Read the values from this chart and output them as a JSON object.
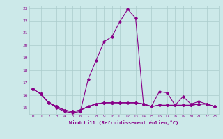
{
  "xlabel": "Windchill (Refroidissement éolien,°C)",
  "background_color": "#cce9e9",
  "grid_color": "#aacccc",
  "line_color": "#880088",
  "x_hours": [
    0,
    1,
    2,
    3,
    4,
    5,
    6,
    7,
    8,
    9,
    10,
    11,
    12,
    13,
    14,
    15,
    16,
    17,
    18,
    19,
    20,
    21,
    22,
    23
  ],
  "series": [
    [
      16.5,
      16.1,
      15.4,
      15.0,
      14.7,
      14.6,
      14.7,
      17.3,
      18.8,
      20.3,
      20.7,
      21.9,
      22.9,
      22.2,
      15.3,
      15.1,
      16.3,
      16.2,
      15.2,
      15.9,
      15.3,
      15.5,
      15.3,
      15.1
    ],
    [
      16.5,
      16.1,
      15.4,
      15.1,
      14.8,
      14.7,
      14.8,
      15.1,
      15.3,
      15.4,
      15.4,
      15.4,
      15.4,
      15.4,
      15.3,
      15.1,
      15.2,
      15.2,
      15.2,
      15.2,
      15.2,
      15.3,
      15.3,
      15.1
    ],
    [
      16.5,
      16.1,
      15.4,
      15.1,
      14.8,
      14.7,
      14.8,
      15.1,
      15.3,
      15.4,
      15.4,
      15.4,
      15.4,
      15.4,
      15.3,
      15.1,
      15.2,
      15.2,
      15.2,
      15.2,
      15.2,
      15.3,
      15.3,
      15.1
    ],
    [
      16.5,
      16.1,
      15.4,
      15.1,
      14.8,
      14.7,
      14.8,
      15.1,
      15.3,
      15.4,
      15.4,
      15.4,
      15.4,
      15.4,
      15.3,
      15.1,
      15.2,
      15.2,
      15.2,
      15.2,
      15.2,
      15.3,
      15.3,
      15.1
    ]
  ],
  "ylim": [
    14.5,
    23.2
  ],
  "yticks": [
    15,
    16,
    17,
    18,
    19,
    20,
    21,
    22,
    23
  ],
  "xticks": [
    0,
    1,
    2,
    3,
    4,
    5,
    6,
    7,
    8,
    9,
    10,
    11,
    12,
    13,
    14,
    15,
    16,
    17,
    18,
    19,
    20,
    21,
    22,
    23
  ],
  "marker": "D",
  "markersize": 1.8,
  "linewidth": 0.8
}
